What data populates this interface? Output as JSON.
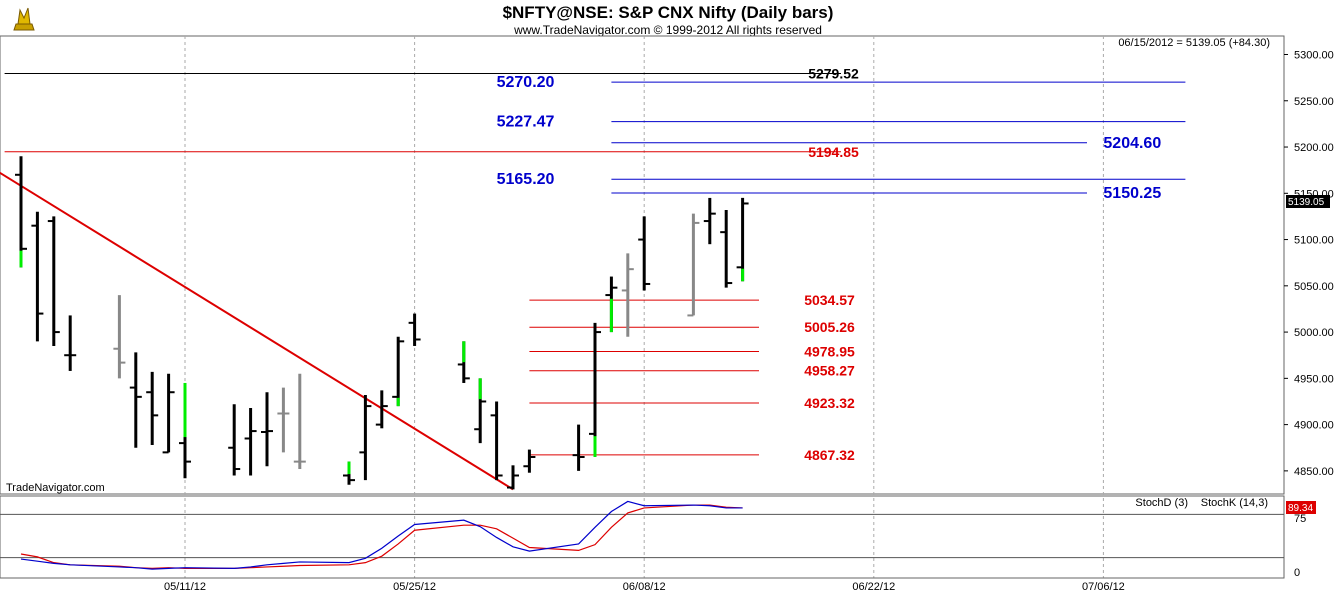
{
  "header": {
    "title": "$NFTY@NSE:  S&P CNX Nifty  (Daily bars)",
    "copyright": "www.TradeNavigator.com © 1999-2012 All rights reserved",
    "last_quote": "06/15/2012 = 5139.05 (+84.30)",
    "watermark": "TradeNavigator.com"
  },
  "colors": {
    "bar_black": "#000000",
    "bar_gray": "#888888",
    "bar_green": "#00ee00",
    "trendline": "#dd0000",
    "level_blue": "#0000cc",
    "level_red": "#dd0000",
    "stoch_d": "#dd0000",
    "stoch_k": "#0000cc"
  },
  "chart_data": [
    {
      "type": "ohlc",
      "ylim": [
        4825,
        5320
      ],
      "y_ticks": [
        "5300.00",
        "5250.00",
        "5200.00",
        "5150.00",
        "5100.00",
        "5050.00",
        "5000.00",
        "4950.00",
        "4900.00",
        "4850.00"
      ],
      "x_labels": [
        "05/11/12",
        "05/25/12",
        "06/08/12",
        "06/22/12",
        "07/06/12"
      ],
      "grid": true,
      "last_price_label": "5139.05",
      "bars": [
        {
          "date": "05/01/12",
          "open": 5170,
          "high": 5190,
          "low": 5070,
          "close": 5090,
          "color": "black",
          "low_tail_color": "green"
        },
        {
          "date": "05/02/12",
          "open": 5115,
          "high": 5130,
          "low": 4990,
          "close": 5020,
          "color": "black"
        },
        {
          "date": "05/03/12",
          "open": 5120,
          "high": 5125,
          "low": 4985,
          "close": 5000,
          "color": "black"
        },
        {
          "date": "05/04/12",
          "open": 4975,
          "high": 5018,
          "low": 4958,
          "close": 4975,
          "color": "black"
        },
        {
          "date": "05/07/12",
          "open": 4982,
          "high": 5040,
          "low": 4950,
          "close": 4967,
          "color": "gray"
        },
        {
          "date": "05/08/12",
          "open": 4940,
          "high": 4978,
          "low": 4875,
          "close": 4930,
          "color": "black"
        },
        {
          "date": "05/09/12",
          "open": 4935,
          "high": 4957,
          "low": 4878,
          "close": 4910,
          "color": "black"
        },
        {
          "date": "05/10/12",
          "open": 4870,
          "high": 4955,
          "low": 4870,
          "close": 4935,
          "color": "black"
        },
        {
          "date": "05/11/12",
          "open": 4880,
          "high": 4945,
          "low": 4842,
          "close": 4860,
          "color": "black",
          "high_tail_color": "green"
        },
        {
          "date": "05/14/12",
          "open": 4875,
          "high": 4922,
          "low": 4845,
          "close": 4852,
          "color": "black"
        },
        {
          "date": "05/15/12",
          "open": 4885,
          "high": 4918,
          "low": 4845,
          "close": 4893,
          "color": "black"
        },
        {
          "date": "05/16/12",
          "open": 4892,
          "high": 4935,
          "low": 4855,
          "close": 4893,
          "color": "black"
        },
        {
          "date": "05/17/12",
          "open": 4912,
          "high": 4940,
          "low": 4870,
          "close": 4912,
          "color": "gray"
        },
        {
          "date": "05/18/12",
          "open": 4860,
          "high": 4955,
          "low": 4852,
          "close": 4860,
          "color": "gray"
        },
        {
          "date": "05/21/12",
          "open": 4845,
          "high": 4860,
          "low": 4835,
          "close": 4840,
          "color": "black",
          "high_tail_color": "green"
        },
        {
          "date": "05/22/12",
          "open": 4870,
          "high": 4932,
          "low": 4840,
          "close": 4920,
          "color": "black"
        },
        {
          "date": "05/23/12",
          "open": 4900,
          "high": 4937,
          "low": 4896,
          "close": 4920,
          "color": "black"
        },
        {
          "date": "05/24/12",
          "open": 4930,
          "high": 4995,
          "low": 4920,
          "close": 4990,
          "color": "black",
          "low_tail_color": "green"
        },
        {
          "date": "05/25/12",
          "open": 5010,
          "high": 5020,
          "low": 4985,
          "close": 4992,
          "color": "black"
        },
        {
          "date": "05/28/12",
          "open": 4965,
          "high": 4990,
          "low": 4945,
          "close": 4950,
          "color": "black",
          "high_tail_color": "green"
        },
        {
          "date": "05/29/12",
          "open": 4895,
          "high": 4950,
          "low": 4880,
          "close": 4925,
          "color": "black",
          "high_tail_color": "green"
        },
        {
          "date": "05/30/12",
          "open": 4910,
          "high": 4925,
          "low": 4840,
          "close": 4845,
          "color": "black"
        },
        {
          "date": "05/31/12",
          "open": 4832,
          "high": 4856,
          "low": 4830,
          "close": 4845,
          "color": "black"
        },
        {
          "date": "06/01/12",
          "open": 4855,
          "high": 4873,
          "low": 4848,
          "close": 4865,
          "color": "black"
        },
        {
          "date": "06/04/12",
          "open": 4867,
          "high": 4900,
          "low": 4850,
          "close": 4865,
          "color": "black"
        },
        {
          "date": "06/05/12",
          "open": 4890,
          "high": 5010,
          "low": 4865,
          "close": 5000,
          "color": "black",
          "low_tail_color": "green"
        },
        {
          "date": "06/06/12",
          "open": 5040,
          "high": 5060,
          "low": 5000,
          "close": 5048,
          "color": "black",
          "low_tail_color": "green"
        },
        {
          "date": "06/07/12",
          "open": 5045,
          "high": 5085,
          "low": 4995,
          "close": 5068,
          "color": "gray"
        },
        {
          "date": "06/08/12",
          "open": 5100,
          "high": 5125,
          "low": 5045,
          "close": 5052,
          "color": "black"
        },
        {
          "date": "06/11/12",
          "open": 5018,
          "high": 5128,
          "low": 5018,
          "close": 5118,
          "color": "gray"
        },
        {
          "date": "06/12/12",
          "open": 5120,
          "high": 5145,
          "low": 5095,
          "close": 5128,
          "color": "black"
        },
        {
          "date": "06/13/12",
          "open": 5108,
          "high": 5132,
          "low": 5048,
          "close": 5053,
          "color": "black"
        },
        {
          "date": "06/14/12",
          "open": 5070,
          "high": 5145,
          "low": 5055,
          "close": 5139,
          "color": "black",
          "low_tail_color": "green"
        }
      ],
      "trendline": {
        "from": {
          "date": "04/30/12",
          "price": 5177
        },
        "to": {
          "date": "05/31/12",
          "price": 4830
        }
      },
      "levels": [
        {
          "label": "5279.52",
          "price": 5279.52,
          "color": "black",
          "line_from": "04/30/12",
          "line_to": "06/20/12",
          "label_at": "06/18/12"
        },
        {
          "label": "5270.20",
          "price": 5270.2,
          "color": "blue",
          "line_from": "06/06/12",
          "line_to": "07/11/12",
          "label_at": "05/30/12"
        },
        {
          "label": "5227.47",
          "price": 5227.47,
          "color": "blue",
          "line_from": "06/06/12",
          "line_to": "07/11/12",
          "label_at": "05/30/12"
        },
        {
          "label": "5204.60",
          "price": 5204.6,
          "color": "blue",
          "line_from": "06/06/12",
          "line_to": "07/05/12",
          "label_at": "07/06/12"
        },
        {
          "label": "5194.85",
          "price": 5194.85,
          "color": "red",
          "line_from": "04/30/12",
          "line_to": "06/20/12",
          "label_at": "06/18/12"
        },
        {
          "label": "5165.20",
          "price": 5165.2,
          "color": "blue",
          "line_from": "06/06/12",
          "line_to": "07/11/12",
          "label_at": "05/30/12"
        },
        {
          "label": "5150.25",
          "price": 5150.25,
          "color": "blue",
          "line_from": "06/06/12",
          "line_to": "07/05/12",
          "label_at": "07/06/12"
        },
        {
          "label": "5034.57",
          "price": 5034.57,
          "color": "red",
          "line_from": "06/01/12",
          "line_to": "06/15/12",
          "label_at": "06/18/12"
        },
        {
          "label": "5005.26",
          "price": 5005.26,
          "color": "red",
          "line_from": "06/01/12",
          "line_to": "06/15/12",
          "label_at": "06/18/12"
        },
        {
          "label": "4978.95",
          "price": 4978.95,
          "color": "red",
          "line_from": "06/01/12",
          "line_to": "06/15/12",
          "label_at": "06/18/12"
        },
        {
          "label": "4958.27",
          "price": 4958.27,
          "color": "red",
          "line_from": "06/01/12",
          "line_to": "06/15/12",
          "label_at": "06/18/12"
        },
        {
          "label": "4923.32",
          "price": 4923.32,
          "color": "red",
          "line_from": "06/01/12",
          "line_to": "06/15/12",
          "label_at": "06/18/12"
        },
        {
          "label": "4867.32",
          "price": 4867.32,
          "color": "red",
          "line_from": "06/01/12",
          "line_to": "06/15/12",
          "label_at": "06/18/12"
        }
      ]
    },
    {
      "type": "line",
      "ylim": [
        0,
        100
      ],
      "y_ticks": [
        "75",
        "0"
      ],
      "reference_lines": [
        80,
        20
      ],
      "last_value_label": "89.34",
      "series": [
        {
          "name": "StochD (3)",
          "color": "#dd0000",
          "x": [
            "05/01/12",
            "05/02/12",
            "05/03/12",
            "05/04/12",
            "05/07/12",
            "05/08/12",
            "05/09/12",
            "05/10/12",
            "05/11/12",
            "05/14/12",
            "05/15/12",
            "05/16/12",
            "05/17/12",
            "05/18/12",
            "05/21/12",
            "05/22/12",
            "05/23/12",
            "05/24/12",
            "05/25/12",
            "05/28/12",
            "05/29/12",
            "05/30/12",
            "05/31/12",
            "06/01/12",
            "06/04/12",
            "06/05/12",
            "06/06/12",
            "06/07/12",
            "06/08/12",
            "06/11/12",
            "06/12/12",
            "06/13/12",
            "06/14/12"
          ],
          "values": [
            25,
            21,
            13,
            10,
            8,
            6,
            5,
            6,
            5,
            5,
            6,
            7,
            8,
            9,
            10,
            13,
            22,
            39,
            58,
            65,
            65,
            60,
            47,
            34,
            30,
            38,
            62,
            82,
            89,
            93,
            93,
            90,
            89
          ]
        },
        {
          "name": "StochK (14,3)",
          "color": "#0000cc",
          "x": [
            "05/01/12",
            "05/02/12",
            "05/03/12",
            "05/04/12",
            "05/07/12",
            "05/08/12",
            "05/09/12",
            "05/10/12",
            "05/11/12",
            "05/14/12",
            "05/15/12",
            "05/16/12",
            "05/17/12",
            "05/18/12",
            "05/21/12",
            "05/22/12",
            "05/23/12",
            "05/24/12",
            "05/25/12",
            "05/28/12",
            "05/29/12",
            "05/30/12",
            "05/31/12",
            "06/01/12",
            "06/04/12",
            "06/05/12",
            "06/06/12",
            "06/07/12",
            "06/08/12",
            "06/11/12",
            "06/12/12",
            "06/13/12",
            "06/14/12"
          ],
          "values": [
            18,
            15,
            12,
            10,
            7,
            6,
            4,
            5,
            6,
            5,
            7,
            10,
            12,
            14,
            13,
            19,
            33,
            50,
            66,
            72,
            63,
            48,
            35,
            29,
            39,
            62,
            84,
            98,
            92,
            93,
            92,
            89,
            89
          ]
        }
      ]
    }
  ]
}
